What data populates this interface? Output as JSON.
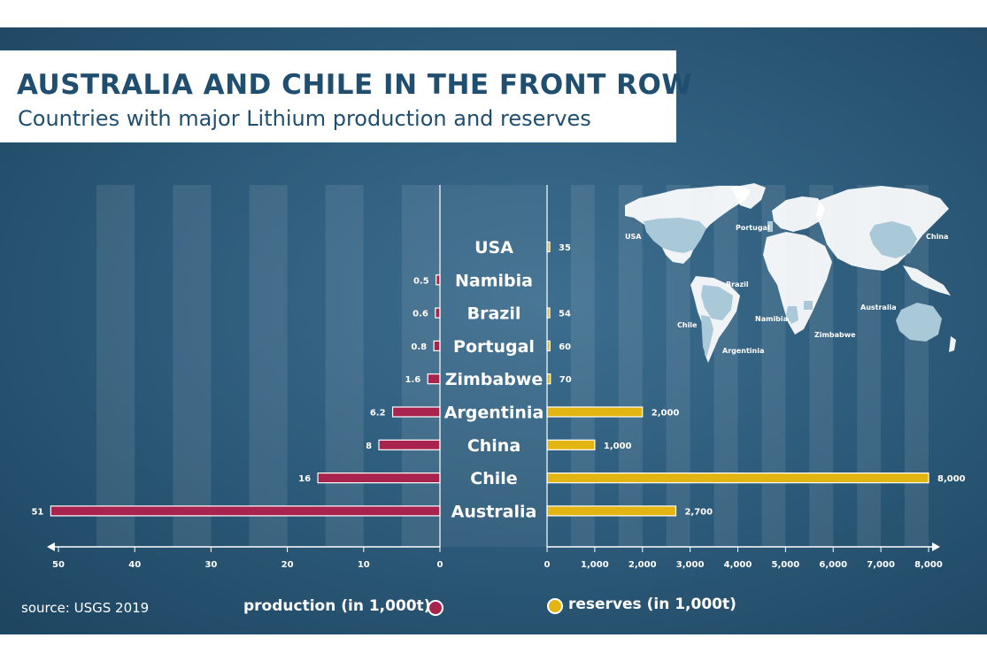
{
  "header": {
    "title": "AUSTRALIA AND CHILE IN THE FRONT ROW",
    "subtitle": "Countries with major Lithium production and reserves"
  },
  "footer": {
    "source": "source: USGS 2019",
    "legend_production": "production (in 1,000t)",
    "legend_reserves": "reserves (in 1,000t)"
  },
  "colors": {
    "background": "#2b5877",
    "production": "#a8234e",
    "reserves": "#e3b512",
    "title": "#1f4e6e"
  },
  "map": {
    "labels": [
      "USA",
      "Portugal",
      "China",
      "Brazil",
      "Australia",
      "Namibia",
      "Chile",
      "Zimbabwe",
      "Argentinia"
    ]
  },
  "chart_data": {
    "type": "bar",
    "orientation": "horizontal",
    "categories": [
      "USA",
      "Namibia",
      "Brazil",
      "Portugal",
      "Zimbabwe",
      "Argentinia",
      "China",
      "Chile",
      "Australia"
    ],
    "series": [
      {
        "name": "production (in 1,000t)",
        "values": [
          null,
          0.5,
          0.6,
          0.8,
          1.6,
          6.2,
          8,
          16,
          51
        ],
        "labels": [
          "",
          "0.5",
          "0.6",
          "0.8",
          "1.6",
          "6.2",
          "8",
          "16",
          "51"
        ]
      },
      {
        "name": "reserves (in 1,000t)",
        "values": [
          35,
          null,
          54,
          60,
          70,
          2000,
          1000,
          8000,
          2700
        ],
        "labels": [
          "35",
          "",
          "54",
          "60",
          "70",
          "2,000",
          "1,000",
          "8,000",
          "2,700"
        ]
      }
    ],
    "production_axis": {
      "range": [
        50,
        0
      ],
      "ticks": [
        "50",
        "40",
        "30",
        "20",
        "10",
        "0"
      ],
      "values": [
        50,
        40,
        30,
        20,
        10,
        0
      ]
    },
    "reserves_axis": {
      "range": [
        0,
        8000
      ],
      "ticks": [
        "0",
        "1,000",
        "2,000",
        "3,000",
        "4,000",
        "5,000",
        "6,000",
        "7,000",
        "8,000"
      ],
      "values": [
        0,
        1000,
        2000,
        3000,
        4000,
        5000,
        6000,
        7000,
        8000
      ]
    },
    "legend": "bottom",
    "grid": true
  }
}
